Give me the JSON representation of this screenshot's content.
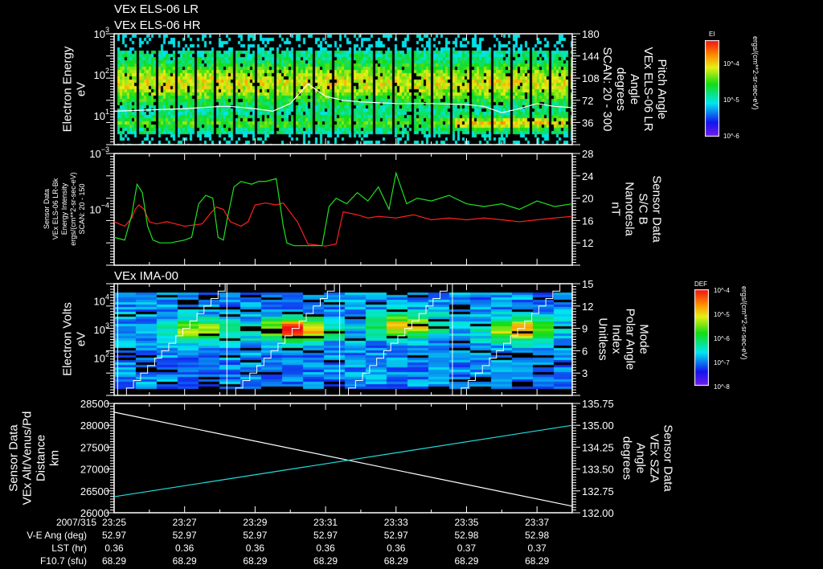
{
  "titles": {
    "lr": "VEx ELS-06 LR",
    "hr": "VEx ELS-06 HR",
    "ima": "VEx IMA-00"
  },
  "colors": {
    "white": "#ffffff",
    "red": "#ff2020",
    "green": "#20e020",
    "cyan": "#20e0e0"
  },
  "chart_data": [
    {
      "type": "heatmap",
      "name": "ELS electron energy spectrogram",
      "ylabel": [
        "Electron Energy",
        "eV"
      ],
      "yticks": [
        "10^1",
        "10^2",
        "10^3"
      ],
      "ylim_log10": [
        0.3,
        3
      ],
      "y2label": [
        "Pitch Angle",
        "VEx ELS-06 LR",
        "Angle",
        "degrees",
        "SCAN: 20 - 300"
      ],
      "y2ticks": [
        "36",
        "72",
        "108",
        "144",
        "180"
      ],
      "y2lim": [
        0,
        180
      ],
      "colorbar": {
        "title": "EI",
        "ticks": [
          "10^-4",
          "10^-5",
          "10^-6"
        ],
        "units": "ergs/(cm**2-sr-sec-eV)"
      },
      "overlay_line": {
        "name": "pitch angle trace",
        "t_min": [
          0,
          1,
          2,
          3,
          3.3,
          4,
          4.5,
          5,
          5.5,
          6,
          6.5,
          7,
          8,
          9,
          10,
          10.5,
          11,
          11.5,
          12,
          12.5,
          13
        ],
        "values_eV": [
          13,
          14,
          15,
          17,
          17,
          15,
          13,
          20,
          60,
          30,
          24,
          22,
          20,
          20,
          19,
          17,
          12,
          15,
          20,
          17,
          16
        ]
      }
    },
    {
      "type": "line",
      "name": "Energy intensity and magnetic field",
      "ylabel": [
        "Sensor Data",
        "VEx ELS-06 LR-Bk",
        "Energy Intensity",
        "ergs/(cm**2-sr-sec-eV)",
        "SCAN: 20 - 150"
      ],
      "yticks": [
        "10^-4",
        "10^-3"
      ],
      "ylim_log10": [
        -5,
        -3
      ],
      "y2label": [
        "Sensor Data",
        "S/C B",
        "Nanotesla",
        "nT"
      ],
      "y2ticks": [
        "12",
        "16",
        "20",
        "24",
        "28"
      ],
      "y2lim": [
        8,
        28
      ],
      "series": [
        {
          "name": "Energy Intensity",
          "color": "#ff2020",
          "axis": "left",
          "t_min": [
            0,
            0.3,
            0.5,
            0.6,
            0.7,
            0.85,
            1.0,
            1.2,
            1.5,
            2,
            2.5,
            2.7,
            2.9,
            3.1,
            3.3,
            3.6,
            3.8,
            4.0,
            4.3,
            4.6,
            4.8,
            5.2,
            5.5,
            6.0,
            6.3,
            6.5,
            6.9,
            7.2,
            7.5,
            8,
            8.5,
            9,
            9.5,
            10,
            10.5,
            11,
            11.5,
            12,
            12.5,
            13
          ],
          "values": [
            6e-05,
            5e-05,
            7e-05,
            0.0001,
            0.00012,
            0.0001,
            6e-05,
            5.5e-05,
            6e-05,
            5e-05,
            5.5e-05,
            8e-05,
            0.00011,
            0.0001,
            6e-05,
            5e-05,
            6e-05,
            0.00012,
            0.00013,
            0.00012,
            0.00013,
            6e-05,
            2.4e-05,
            2.2e-05,
            2.4e-05,
            9e-05,
            8e-05,
            7e-05,
            7.5e-05,
            7e-05,
            8e-05,
            6.5e-05,
            7e-05,
            6.5e-05,
            7e-05,
            6.5e-05,
            6e-05,
            6.5e-05,
            7e-05,
            7.5e-05
          ]
        },
        {
          "name": "S/C B",
          "color": "#20e020",
          "axis": "right",
          "t_min": [
            0,
            0.3,
            0.5,
            0.65,
            0.8,
            0.95,
            1.1,
            1.3,
            1.6,
            2,
            2.2,
            2.4,
            2.6,
            2.8,
            2.95,
            3.1,
            3.2,
            3.4,
            3.6,
            3.9,
            4.1,
            4.3,
            4.6,
            4.8,
            4.9,
            5.1,
            5.3,
            5.6,
            5.9,
            6.1,
            6.3,
            6.6,
            6.9,
            7.2,
            7.5,
            7.8,
            8.0,
            8.3,
            8.6,
            9,
            9.5,
            10,
            10.5,
            11,
            11.5,
            12,
            12.5,
            13
          ],
          "values": [
            13,
            12.5,
            17,
            22.5,
            21,
            15,
            12.5,
            12,
            12,
            12.5,
            13,
            19,
            20.5,
            20,
            13,
            12.5,
            16,
            22,
            23,
            22.5,
            23,
            23,
            23.5,
            15,
            12,
            11.5,
            11.5,
            11.5,
            11.5,
            18.5,
            20,
            19,
            21,
            19.5,
            22,
            18,
            24.5,
            19,
            20,
            19.5,
            20.5,
            19,
            18.5,
            19,
            18,
            19.5,
            18.5,
            19
          ]
        }
      ]
    },
    {
      "type": "heatmap",
      "name": "IMA electron volts spectrogram",
      "ylabel": [
        "Electron Volts",
        "eV"
      ],
      "yticks": [
        "10^2",
        "10^3",
        "10^4"
      ],
      "ylim_log10": [
        0.7,
        4.6
      ],
      "y2label": [
        "Mode",
        "Polar Angle",
        "Index",
        "Unitless"
      ],
      "y2ticks": [
        "3",
        "6",
        "9",
        "12",
        "15"
      ],
      "y2lim": [
        0,
        15
      ],
      "colorbar": {
        "title": "DEF",
        "ticks": [
          "10^-4",
          "10^-5",
          "10^-6",
          "10^-7",
          "10^-8"
        ],
        "units": "ergs/(cm**2-sr-sec-eV)"
      },
      "overlay_line": {
        "name": "polar angle index staircase",
        "sweep_start_t_min": [
          0.15,
          3.25,
          6.45,
          9.65
        ],
        "sweep_duration_t_min": 3.2,
        "range": [
          0,
          15
        ]
      }
    },
    {
      "type": "line",
      "name": "Altitude and solar zenith angle",
      "ylabel": [
        "Sensor Data",
        "VEx Alt/Venus/Pd",
        "Distance",
        "km"
      ],
      "yticks": [
        "26000",
        "26500",
        "27000",
        "27500",
        "28000",
        "28500"
      ],
      "ylim": [
        26000,
        28500
      ],
      "y2label": [
        "Sensor Data",
        "VEx SZA",
        "Angle",
        "degrees"
      ],
      "y2ticks": [
        "132.00",
        "132.75",
        "133.50",
        "134.25",
        "135.00",
        "135.75"
      ],
      "y2lim": [
        132,
        135.75
      ],
      "series": [
        {
          "name": "VEx Alt",
          "color": "#ffffff",
          "axis": "left",
          "t_min": [
            0,
            13
          ],
          "values": [
            28300,
            26150
          ]
        },
        {
          "name": "VEx SZA",
          "color": "#20e0e0",
          "axis": "right",
          "t_min": [
            0,
            13
          ],
          "values": [
            132.55,
            135.0
          ]
        }
      ]
    }
  ],
  "time_axis": {
    "date": "2007/315",
    "ticks": [
      "23:25",
      "23:27",
      "23:29",
      "23:31",
      "23:33",
      "23:35",
      "23:37"
    ],
    "range_t_min": [
      0,
      13
    ],
    "rows": [
      {
        "label": "V-E Ang (deg)",
        "values": [
          "52.97",
          "52.97",
          "52.97",
          "52.97",
          "52.97",
          "52.98",
          "52.98"
        ]
      },
      {
        "label": "LST (hr)",
        "values": [
          "0.36",
          "0.36",
          "0.36",
          "0.36",
          "0.36",
          "0.37",
          "0.37"
        ]
      },
      {
        "label": "F10.7 (sfu)",
        "values": [
          "68.29",
          "68.29",
          "68.29",
          "68.29",
          "68.29",
          "68.29",
          "68.29"
        ]
      }
    ]
  }
}
